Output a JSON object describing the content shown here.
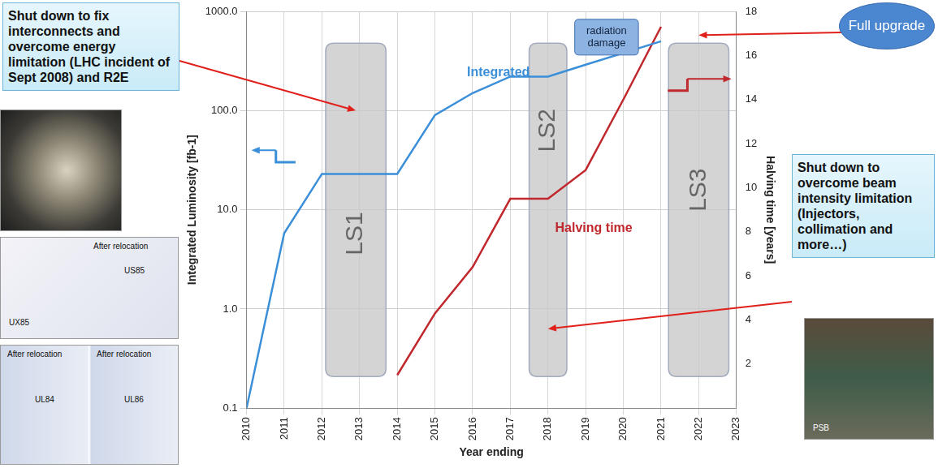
{
  "chart_data": {
    "type": "line",
    "x_label": "Year ending",
    "y_label": "Integrated Luminosity [fb-1]",
    "y2_label": "Halving time [years]",
    "x": [
      2010,
      2011,
      2012,
      2013,
      2014,
      2015,
      2016,
      2017,
      2018,
      2019,
      2020,
      2021
    ],
    "series": [
      {
        "name": "Integrated",
        "color": "#3b8fd8",
        "axis": "y",
        "values": [
          0.1,
          5.8,
          23,
          23,
          23,
          90,
          150,
          220,
          220,
          290,
          380,
          500
        ]
      },
      {
        "name": "Halving time",
        "color": "#c0282d",
        "axis": "y2",
        "values": [
          null,
          null,
          null,
          null,
          1.5,
          4.3,
          6.4,
          9.5,
          9.5,
          10.8,
          14,
          17.3
        ]
      }
    ],
    "xlim": [
      2010,
      2023
    ],
    "xticks": [
      2010,
      2011,
      2012,
      2013,
      2014,
      2015,
      2016,
      2017,
      2018,
      2019,
      2020,
      2021,
      2022,
      2023
    ],
    "ylim": [
      0.1,
      1000
    ],
    "yticks": [
      0.1,
      {
        "value": 1,
        "label": "1.0"
      },
      {
        "value": 10,
        "label": "10.0"
      },
      {
        "value": 100,
        "label": "100.0"
      },
      {
        "value": 1000,
        "label": "1000.0"
      }
    ],
    "y2lim": [
      0,
      18
    ],
    "y2ticks": [
      2,
      4,
      6,
      8,
      10,
      12,
      14,
      16,
      18
    ],
    "log": "y",
    "grid": true,
    "shaded_regions": [
      {
        "label": "LS1",
        "start": 2012.1,
        "end": 2013.7
      },
      {
        "label": "LS2",
        "start": 2017.5,
        "end": 2018.5
      },
      {
        "label": "LS3",
        "start": 2021.2,
        "end": 2022.8
      }
    ],
    "annotations": [
      "radiation damage"
    ],
    "left_note": "Shut down to fix interconnects and overcome energy limitation (LHC incident of Sept 2008) and R2E",
    "right_note": "Shut down to overcome beam intensity limitation (Injectors, collimation and more…)",
    "badge": "Full upgrade",
    "photo_captions": [
      [
        "After relocation",
        "US85",
        "UX85"
      ],
      [
        "After relocation",
        "UL84",
        "After relocation",
        "UL86"
      ],
      [
        "PSB"
      ]
    ]
  }
}
